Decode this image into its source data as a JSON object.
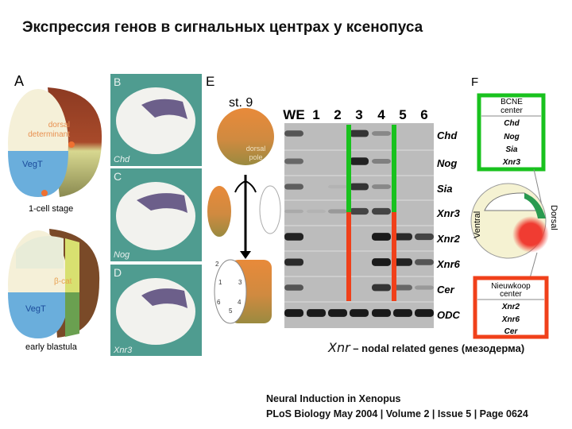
{
  "title": "Экспрессия генов в сигнальных центрах у ксенопуса",
  "panelA": {
    "letter": "A",
    "dorsal_determinant": [
      "dorsal",
      "determinant"
    ],
    "vegT": "VegT",
    "stage1": "1-cell stage",
    "beta_cat": "β-cat",
    "vegT2": "VegT",
    "stage2": "early blastula"
  },
  "panelB": {
    "letter": "B",
    "gene": "Chd"
  },
  "panelC": {
    "letter": "C",
    "gene": "Nog"
  },
  "panelD": {
    "letter": "D",
    "gene": "Xnr3"
  },
  "panelE": {
    "letter": "E",
    "stage": "st. 9",
    "dorsal_pole": [
      "dorsal",
      "pole"
    ],
    "pieces": [
      "1",
      "2",
      "3",
      "4",
      "5",
      "6"
    ]
  },
  "gel": {
    "lanes": [
      "WE",
      "1",
      "2",
      "3",
      "4",
      "5",
      "6"
    ],
    "genes": [
      "Chd",
      "Nog",
      "Sia",
      "Xnr3",
      "Xnr2",
      "Xnr6",
      "Cer",
      "ODC"
    ],
    "band_intensity": [
      [
        0.6,
        0,
        0,
        0.8,
        0.3,
        0,
        0
      ],
      [
        0.5,
        0,
        0,
        0.9,
        0.35,
        0,
        0
      ],
      [
        0.55,
        0,
        0.05,
        0.8,
        0.3,
        0,
        0
      ],
      [
        0.1,
        0.05,
        0.2,
        0.7,
        0.7,
        0,
        0
      ],
      [
        0.9,
        0,
        0,
        0,
        0.95,
        0.85,
        0.7
      ],
      [
        0.85,
        0,
        0,
        0,
        0.95,
        0.9,
        0.6
      ],
      [
        0.6,
        0,
        0,
        0,
        0.8,
        0.5,
        0.2
      ],
      [
        0.95,
        0.95,
        0.95,
        0.95,
        0.95,
        0.95,
        0.95
      ]
    ]
  },
  "panelF": {
    "letter": "F",
    "bcne": {
      "title": [
        "BCNE",
        "center"
      ],
      "genes": [
        "Chd",
        "Nog",
        "Sia",
        "Xnr3"
      ]
    },
    "nieuwkoop": {
      "title": [
        "Nieuwkoop",
        "center"
      ],
      "genes": [
        "Xnr2",
        "Xnr6",
        "Cer"
      ]
    },
    "ventral": "Ventral",
    "dorsal": "Dorsal"
  },
  "colors": {
    "green": "#19c21e",
    "red": "#f0401a",
    "teal": "#4f9c90"
  },
  "note": {
    "abbr": "Xnr",
    "text": " – nodal related genes (мезодерма)"
  },
  "citation": [
    "Neural Induction in Xenopus",
    "PLoS Biology May 2004 | Volume 2 | Issue 5 | Page 0624"
  ]
}
